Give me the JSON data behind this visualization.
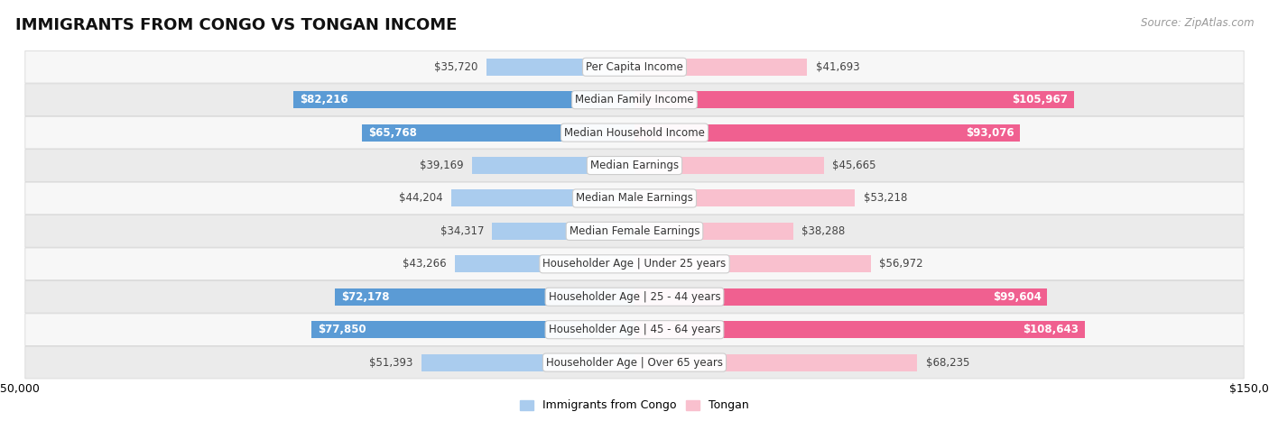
{
  "title": "IMMIGRANTS FROM CONGO VS TONGAN INCOME",
  "source": "Source: ZipAtlas.com",
  "categories": [
    "Per Capita Income",
    "Median Family Income",
    "Median Household Income",
    "Median Earnings",
    "Median Male Earnings",
    "Median Female Earnings",
    "Householder Age | Under 25 years",
    "Householder Age | 25 - 44 years",
    "Householder Age | 45 - 64 years",
    "Householder Age | Over 65 years"
  ],
  "congo_values": [
    35720,
    82216,
    65768,
    39169,
    44204,
    34317,
    43266,
    72178,
    77850,
    51393
  ],
  "tongan_values": [
    41693,
    105967,
    93076,
    45665,
    53218,
    38288,
    56972,
    99604,
    108643,
    68235
  ],
  "congo_color_light": "#aaccee",
  "congo_color_dark": "#5B9BD5",
  "tongan_color_light": "#F9C0CE",
  "tongan_color_dark": "#F06090",
  "congo_threshold": 60000,
  "tongan_threshold": 80000,
  "bar_height": 0.52,
  "xlim": 150000,
  "row_colors": [
    "#f7f7f7",
    "#ebebeb"
  ],
  "row_edge_color": "#d8d8d8",
  "title_fontsize": 13,
  "value_fontsize": 8.5,
  "label_fontsize": 8.5,
  "tick_fontsize": 9,
  "legend_fontsize": 9,
  "source_fontsize": 8.5
}
